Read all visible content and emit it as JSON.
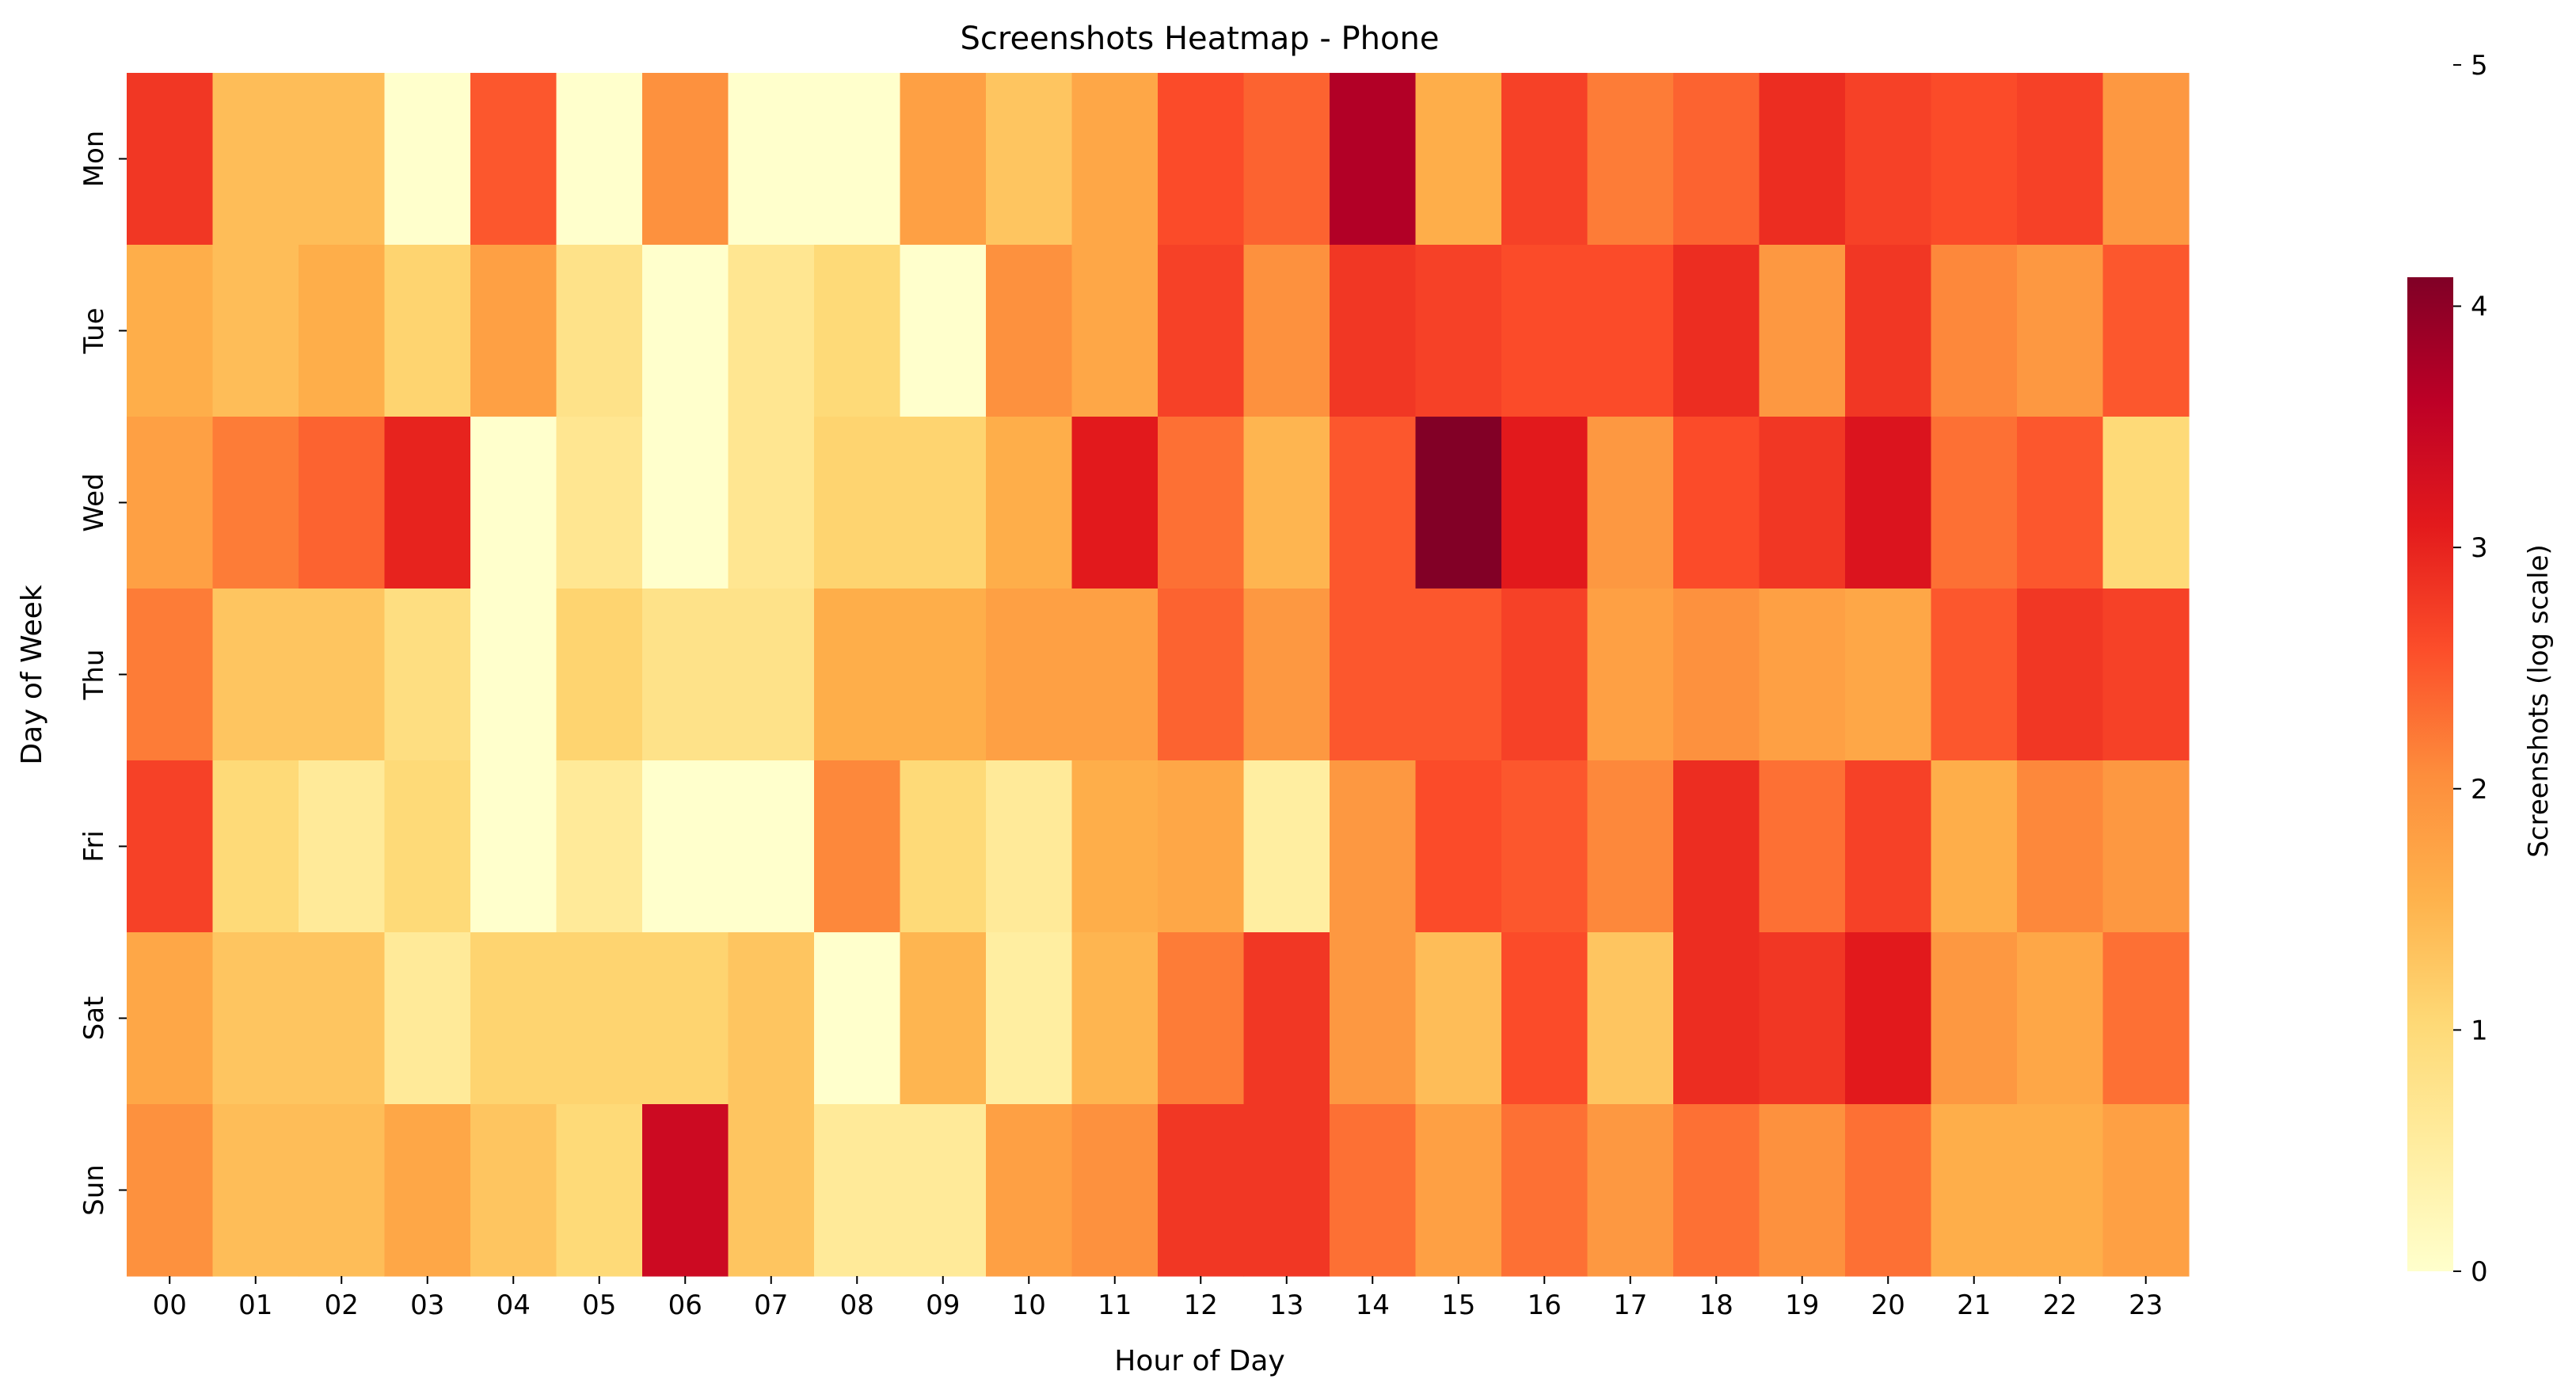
{
  "chart_data": {
    "type": "heatmap",
    "title": "Screenshots Heatmap - Phone",
    "xlabel": "Hour of Day",
    "ylabel": "Day of Week",
    "x_categories": [
      "00",
      "01",
      "02",
      "03",
      "04",
      "05",
      "06",
      "07",
      "08",
      "09",
      "10",
      "11",
      "12",
      "13",
      "14",
      "15",
      "16",
      "17",
      "18",
      "19",
      "20",
      "21",
      "22",
      "23"
    ],
    "y_categories": [
      "Mon",
      "Tue",
      "Wed",
      "Thu",
      "Fri",
      "Sat",
      "Sun"
    ],
    "values_log_scale": [
      [
        2.8,
        1.4,
        1.4,
        0.0,
        2.5,
        0.0,
        2.0,
        0.0,
        0.0,
        1.8,
        1.3,
        1.7,
        2.6,
        2.4,
        3.7,
        1.6,
        2.7,
        2.2,
        2.4,
        2.9,
        2.7,
        2.6,
        2.7,
        1.9
      ],
      [
        1.6,
        1.4,
        1.6,
        1.1,
        1.8,
        0.8,
        0.0,
        0.7,
        1.0,
        0.0,
        2.0,
        1.7,
        2.7,
        2.0,
        2.8,
        2.7,
        2.6,
        2.6,
        2.9,
        1.9,
        2.8,
        2.1,
        1.9,
        2.5
      ],
      [
        1.8,
        2.2,
        2.4,
        3.0,
        0.0,
        0.7,
        0.0,
        0.7,
        1.1,
        1.1,
        1.6,
        3.1,
        2.3,
        1.5,
        2.5,
        4.1,
        3.1,
        1.9,
        2.6,
        2.8,
        3.2,
        2.3,
        2.5,
        1.0
      ],
      [
        2.2,
        1.3,
        1.3,
        0.9,
        0.0,
        1.1,
        0.8,
        0.8,
        1.6,
        1.6,
        1.8,
        1.8,
        2.4,
        1.9,
        2.5,
        2.5,
        2.7,
        1.8,
        2.0,
        1.8,
        1.7,
        2.5,
        2.8,
        2.7
      ],
      [
        2.7,
        1.0,
        0.6,
        1.0,
        0.0,
        0.6,
        0.0,
        0.0,
        2.1,
        1.0,
        0.6,
        1.6,
        1.7,
        0.5,
        1.9,
        2.6,
        2.5,
        2.1,
        2.9,
        2.3,
        2.7,
        1.6,
        2.1,
        1.9
      ],
      [
        1.7,
        1.3,
        1.3,
        0.6,
        1.1,
        1.1,
        1.1,
        1.3,
        0.0,
        1.5,
        0.5,
        1.5,
        2.2,
        2.8,
        1.9,
        1.4,
        2.6,
        1.3,
        2.9,
        2.8,
        3.1,
        1.9,
        1.7,
        2.3
      ],
      [
        2.0,
        1.4,
        1.4,
        1.7,
        1.3,
        1.0,
        3.4,
        1.3,
        0.6,
        0.6,
        1.8,
        2.0,
        2.8,
        2.8,
        2.3,
        1.8,
        2.3,
        1.9,
        2.3,
        2.0,
        2.3,
        1.6,
        1.6,
        1.8
      ]
    ],
    "colorbar": {
      "label": "Screenshots (log scale)",
      "ticks": [
        "0",
        "1",
        "2",
        "3",
        "4",
        "5"
      ],
      "range": [
        0,
        4.12
      ],
      "axis_max": 5,
      "colormap": "YlOrRd",
      "colors": [
        "#ffffcc",
        "#ffeda0",
        "#fed976",
        "#feb24c",
        "#fd8d3c",
        "#fc4e2a",
        "#e31a1c",
        "#bd0026",
        "#800026"
      ]
    },
    "grid": false,
    "legend": "colorbar-right"
  }
}
